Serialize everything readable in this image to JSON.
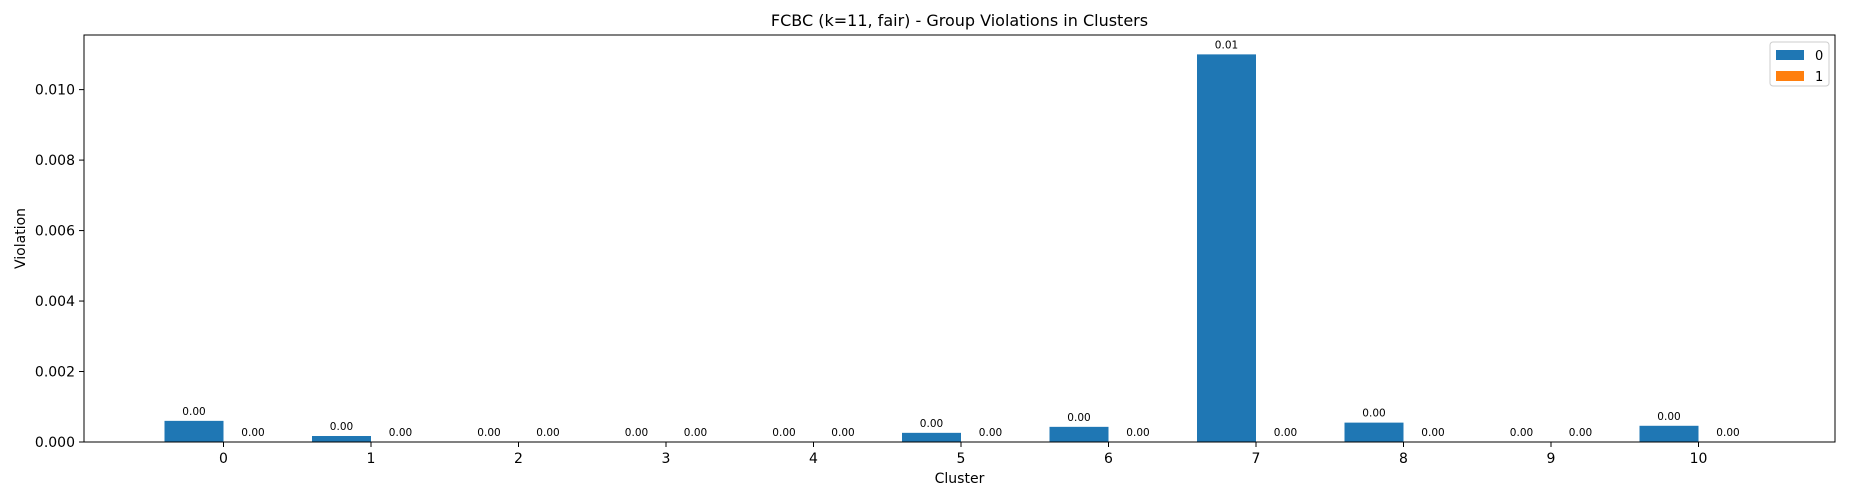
{
  "chart_data": {
    "type": "bar",
    "title": "FCBC (k=11, fair) - Group Violations in Clusters",
    "xlabel": "Cluster",
    "ylabel": "Violation",
    "categories": [
      "0",
      "1",
      "2",
      "3",
      "4",
      "5",
      "6",
      "7",
      "8",
      "9",
      "10"
    ],
    "series": [
      {
        "name": "0",
        "color": "#1f77b4",
        "values": [
          0.0006,
          0.00017,
          0.0,
          0.0,
          0.0,
          0.00026,
          0.00043,
          0.011,
          0.00055,
          0.0,
          0.00046
        ],
        "labels": [
          "0.00",
          "0.00",
          "0.00",
          "0.00",
          "0.00",
          "0.00",
          "0.00",
          "0.01",
          "0.00",
          "0.00",
          "0.00"
        ]
      },
      {
        "name": "1",
        "color": "#ff7f0e",
        "values": [
          0,
          0,
          0,
          0,
          0,
          0,
          0,
          0,
          0,
          0,
          0
        ],
        "labels": [
          "0.00",
          "0.00",
          "0.00",
          "0.00",
          "0.00",
          "0.00",
          "0.00",
          "0.00",
          "0.00",
          "0.00",
          "0.00"
        ]
      }
    ],
    "ylim": [
      0,
      0.01155
    ],
    "yticks": [
      0.0,
      0.002,
      0.004,
      0.006,
      0.008,
      0.01
    ],
    "ytick_labels": [
      "0.000",
      "0.002",
      "0.004",
      "0.006",
      "0.008",
      "0.010"
    ],
    "grid": false,
    "legend": "top-right"
  }
}
